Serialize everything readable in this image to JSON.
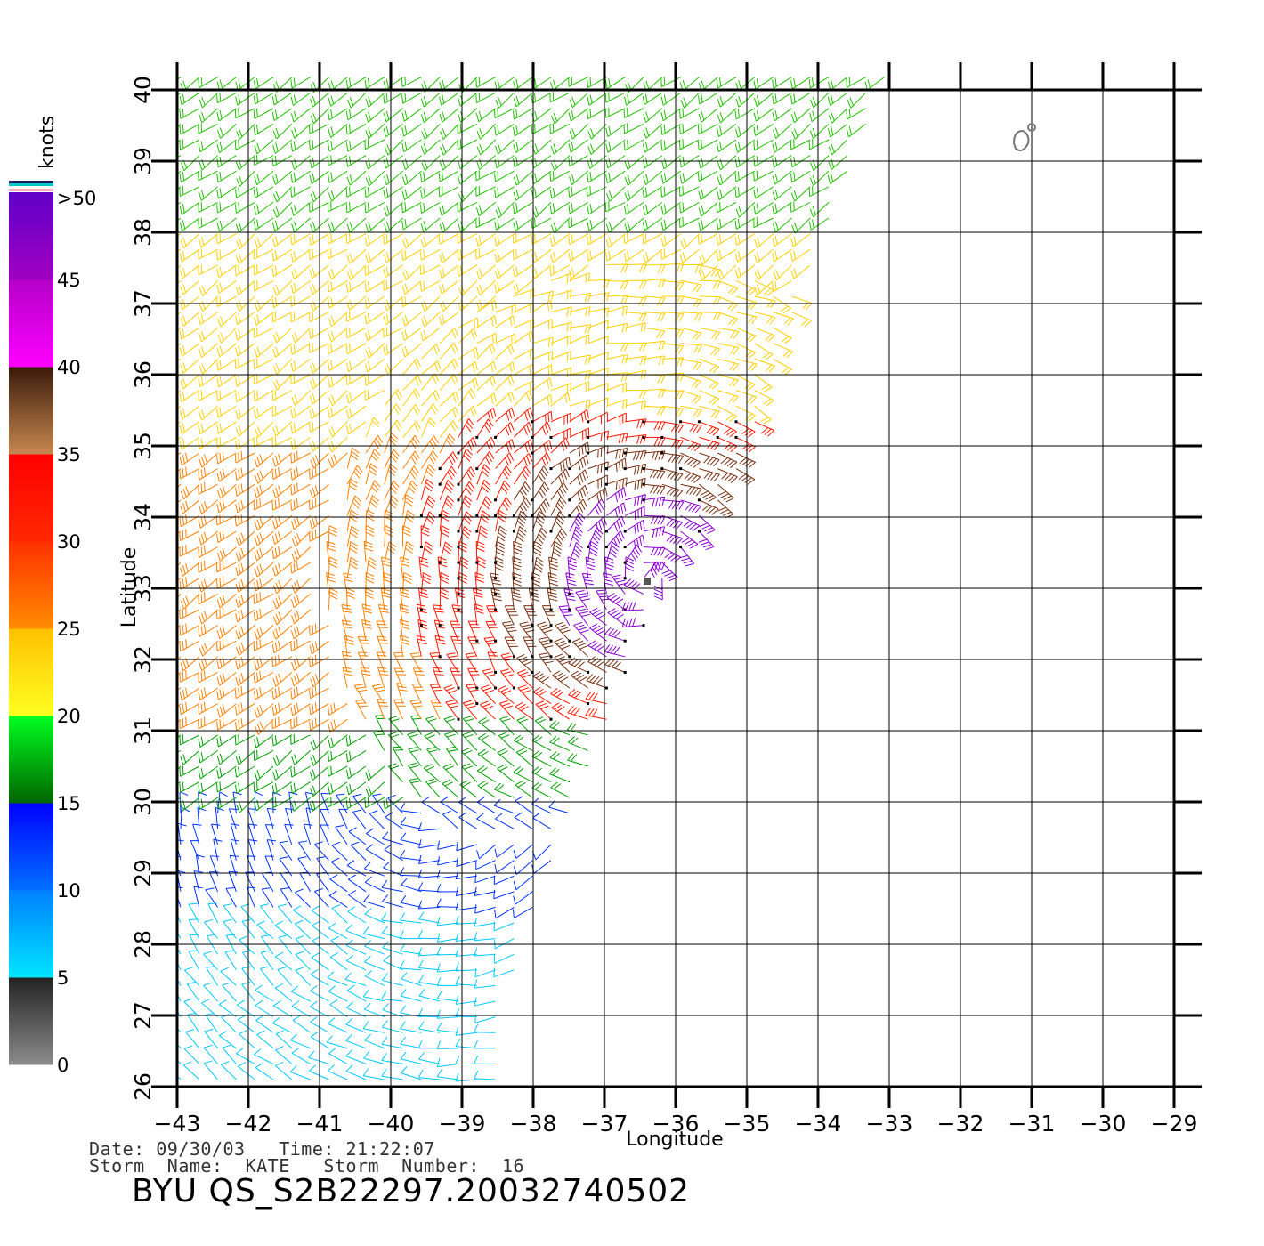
{
  "chart_data": {
    "type": "wind-barb-map",
    "xlabel": "Longitude",
    "ylabel": "Latitude",
    "xlim": [
      -43,
      -29
    ],
    "ylim": [
      26,
      40
    ],
    "x_ticks": [
      "−43",
      "−42",
      "−41",
      "−40",
      "−39",
      "−38",
      "−37",
      "−36",
      "−35",
      "−34",
      "−33",
      "−32",
      "−31",
      "−30",
      "−29"
    ],
    "y_ticks": [
      "26",
      "27",
      "28",
      "29",
      "30",
      "31",
      "32",
      "33",
      "34",
      "35",
      "36",
      "37",
      "38",
      "39",
      "40"
    ],
    "grid": true,
    "colorbar": {
      "title": "knots",
      "labels": [
        "0",
        "5",
        "10",
        "15",
        "20",
        "25",
        "30",
        "35",
        "40",
        "45",
        ">50"
      ],
      "bands": [
        {
          "from": 0,
          "to": 5,
          "colors": [
            "#8c8c8c",
            "#222222"
          ]
        },
        {
          "from": 5,
          "to": 10,
          "colors": [
            "#00e5ff",
            "#0080ff"
          ]
        },
        {
          "from": 10,
          "to": 15,
          "colors": [
            "#0070ff",
            "#0000ff"
          ]
        },
        {
          "from": 15,
          "to": 20,
          "colors": [
            "#006400",
            "#00ff20"
          ]
        },
        {
          "from": 20,
          "to": 25,
          "colors": [
            "#ffff20",
            "#ffc000"
          ]
        },
        {
          "from": 25,
          "to": 30,
          "colors": [
            "#ff8c00",
            "#ff3000"
          ]
        },
        {
          "from": 30,
          "to": 35,
          "colors": [
            "#ff2800",
            "#ff0000"
          ]
        },
        {
          "from": 35,
          "to": 40,
          "colors": [
            "#c88850",
            "#3a1a0a"
          ]
        },
        {
          "from": 40,
          "to": 45,
          "colors": [
            "#ff00ff",
            "#b400c8"
          ]
        },
        {
          "from": 45,
          "to": 50,
          "colors": [
            "#a000c0",
            "#6000c8"
          ]
        }
      ]
    },
    "swath_edge": [
      [
        -43,
        26
      ],
      [
        -38.5,
        26
      ],
      [
        -38.2,
        28
      ],
      [
        -37.2,
        30.5
      ],
      [
        -36.2,
        33
      ],
      [
        -35.3,
        34.3
      ],
      [
        -35.0,
        35
      ],
      [
        -34.5,
        36.5
      ],
      [
        -33.9,
        38
      ],
      [
        -33.0,
        40.3
      ],
      [
        -43,
        40.3
      ]
    ],
    "storm_center": {
      "lon": -36.4,
      "lat": 33.1
    },
    "speed_zones": [
      {
        "lat_range": [
          26,
          28.5
        ],
        "knots": 9,
        "color": "#00c8ff"
      },
      {
        "lat_range": [
          28.5,
          30
        ],
        "knots": 13,
        "color": "#0033ff"
      },
      {
        "lat_range": [
          30,
          31
        ],
        "knots": 18,
        "color": "#00a000"
      },
      {
        "lat_range": [
          31,
          35
        ],
        "knots": 26,
        "color": "#ff8000"
      },
      {
        "lat_range": [
          35,
          38
        ],
        "knots": 23,
        "color": "#ffd000"
      },
      {
        "lat_range": [
          38,
          40.3
        ],
        "knots": 19,
        "color": "#20c000"
      }
    ],
    "island_marker": {
      "lon": -31.1,
      "lat": 39.3
    }
  },
  "info": {
    "date_line": "Date: 09/30/03   Time: 21:22:07",
    "storm_line": "Storm  Name:  KATE   Storm  Number:  16",
    "title": "BYU  QS_S2B22297.20032740502"
  }
}
